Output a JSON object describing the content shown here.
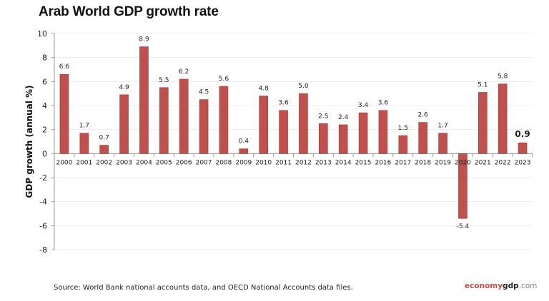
{
  "chart_data": {
    "type": "bar",
    "title": "Arab World GDP growth rate",
    "ylabel": "GDP growth (annual %)",
    "xlabel": "",
    "ylim": [
      -8,
      10
    ],
    "yticks": [
      10,
      8,
      6,
      4,
      2,
      0,
      -2,
      -4,
      -6,
      -8
    ],
    "grid": true,
    "categories": [
      "2000",
      "2001",
      "2002",
      "2003",
      "2004",
      "2005",
      "2006",
      "2007",
      "2008",
      "2009",
      "2010",
      "2011",
      "2012",
      "2013",
      "2014",
      "2015",
      "2016",
      "2017",
      "2018",
      "2019",
      "2020",
      "2021",
      "2022",
      "2023"
    ],
    "values": [
      6.6,
      1.7,
      0.7,
      4.9,
      8.9,
      5.5,
      6.2,
      4.5,
      5.6,
      0.4,
      4.8,
      3.6,
      5.0,
      2.5,
      2.4,
      3.4,
      3.6,
      1.5,
      2.6,
      1.7,
      -5.4,
      5.1,
      5.8,
      0.9
    ],
    "bar_color": "#c0504d",
    "highlight_last_label": true
  },
  "footer": {
    "source": "Source: World Bank national accounts data, and OECD National Accounts data files.",
    "logo_part1": "economy",
    "logo_part2": "gdp",
    "logo_part3": ".com"
  }
}
